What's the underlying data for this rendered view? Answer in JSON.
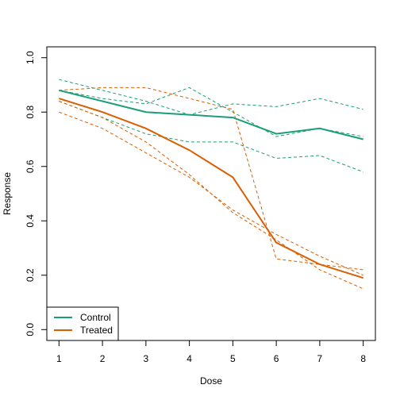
{
  "chart_data": {
    "type": "line",
    "title": "",
    "xlabel": "Dose",
    "ylabel": "Response",
    "x": [
      1,
      2,
      3,
      4,
      5,
      6,
      7,
      8
    ],
    "xlim": [
      0.72,
      8.28
    ],
    "ylim": [
      -0.04,
      1.04
    ],
    "xticks": [
      "1",
      "2",
      "3",
      "4",
      "5",
      "6",
      "7",
      "8"
    ],
    "yticks": [
      "0.0",
      "0.2",
      "0.4",
      "0.6",
      "0.8",
      "1.0"
    ],
    "ytick_values": [
      0.0,
      0.2,
      0.4,
      0.6,
      0.8,
      1.0
    ],
    "grid": false,
    "legend_position": "bottom-left",
    "series": [
      {
        "name": "Control",
        "color": "#1b9e77",
        "style": "solid",
        "values": [
          0.88,
          0.84,
          0.8,
          0.79,
          0.78,
          0.72,
          0.74,
          0.7
        ]
      },
      {
        "name": "Treated",
        "color": "#d95f02",
        "style": "solid",
        "values": [
          0.85,
          0.8,
          0.74,
          0.66,
          0.56,
          0.32,
          0.24,
          0.19
        ]
      },
      {
        "color": "#1b9e77",
        "style": "dashed",
        "values": [
          0.92,
          0.88,
          0.84,
          0.79,
          0.83,
          0.82,
          0.85,
          0.81
        ]
      },
      {
        "color": "#1b9e77",
        "style": "dashed",
        "values": [
          0.88,
          0.85,
          0.83,
          0.89,
          0.8,
          0.71,
          0.74,
          0.71
        ]
      },
      {
        "color": "#1b9e77",
        "style": "dashed",
        "values": [
          0.84,
          0.78,
          0.72,
          0.69,
          0.69,
          0.63,
          0.64,
          0.58
        ]
      },
      {
        "color": "#d95f02",
        "style": "dashed",
        "values": [
          0.88,
          0.89,
          0.89,
          0.85,
          0.81,
          0.26,
          0.24,
          0.22
        ]
      },
      {
        "color": "#d95f02",
        "style": "dashed",
        "values": [
          0.8,
          0.74,
          0.65,
          0.56,
          0.44,
          0.35,
          0.27,
          0.2
        ]
      },
      {
        "color": "#d95f02",
        "style": "dashed",
        "values": [
          0.84,
          0.78,
          0.69,
          0.57,
          0.43,
          0.33,
          0.22,
          0.15
        ]
      }
    ]
  }
}
